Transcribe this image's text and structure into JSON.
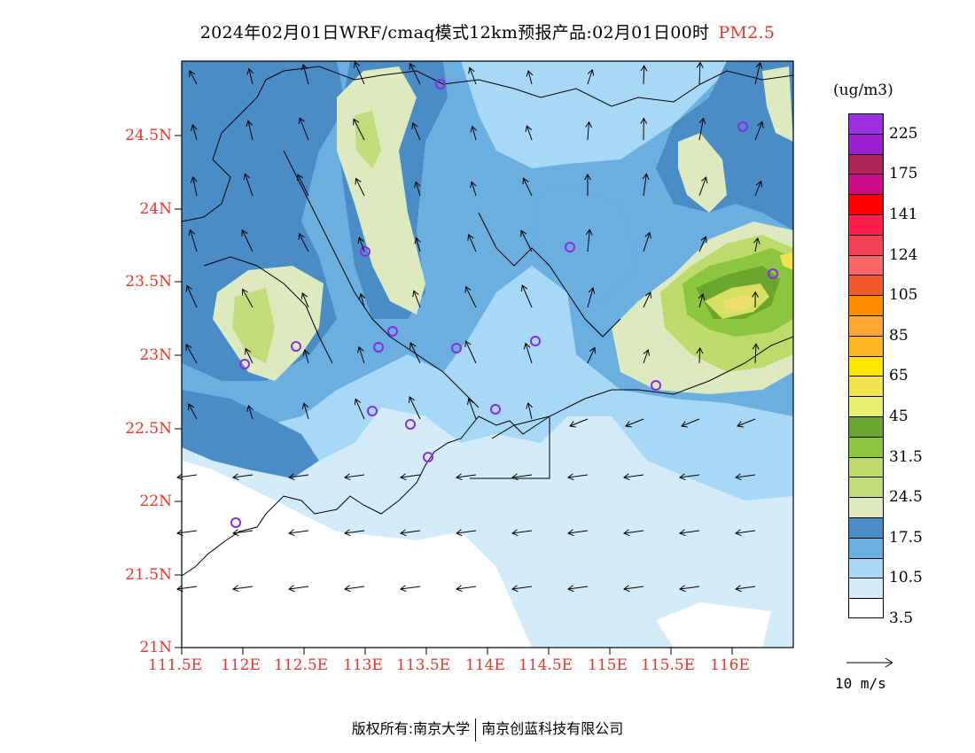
{
  "title": {
    "main": "2024年02月01日WRF/cmaq模式12km预报产品:02月01日00时",
    "variable": "PM2.5"
  },
  "colors": {
    "axis_label": "#e8352b",
    "station_marker": "#8a2be2"
  },
  "map": {
    "lon_ticks": [
      "111.5E",
      "112E",
      "112.5E",
      "113E",
      "113.5E",
      "114E",
      "114.5E",
      "115E",
      "115.5E",
      "116E"
    ],
    "lat_ticks": [
      "24.5N",
      "24N",
      "23.5N",
      "23N",
      "22.5N",
      "22N",
      "21.5N",
      "21N"
    ]
  },
  "colorbar": {
    "units": "(ug/m3)",
    "colors": [
      "#9b30e0",
      "#9b1fd0",
      "#b0245a",
      "#cc0c88",
      "#ff0000",
      "#ff1f4b",
      "#f04252",
      "#ff6666",
      "#f05a2a",
      "#ff8c00",
      "#ffa633",
      "#ffb825",
      "#ffe600",
      "#f2e34d",
      "#e9f06f",
      "#6aa52d",
      "#8cc63f",
      "#bcdb6a",
      "#c2dc7c",
      "#dde9be",
      "#4a8cc6",
      "#6baee0",
      "#a7d8f5",
      "#d4ecf9",
      "#ffffff"
    ],
    "labels": [
      "225",
      "175",
      "141",
      "124",
      "105",
      "85",
      "65",
      "45",
      "31.5",
      "24.5",
      "17.5",
      "10.5",
      "3.5"
    ]
  },
  "vector_reference": {
    "label": "10 m/s"
  },
  "footer": {
    "left": "版权所有:南京大学",
    "right": "南京创蓝科技有限公司"
  }
}
